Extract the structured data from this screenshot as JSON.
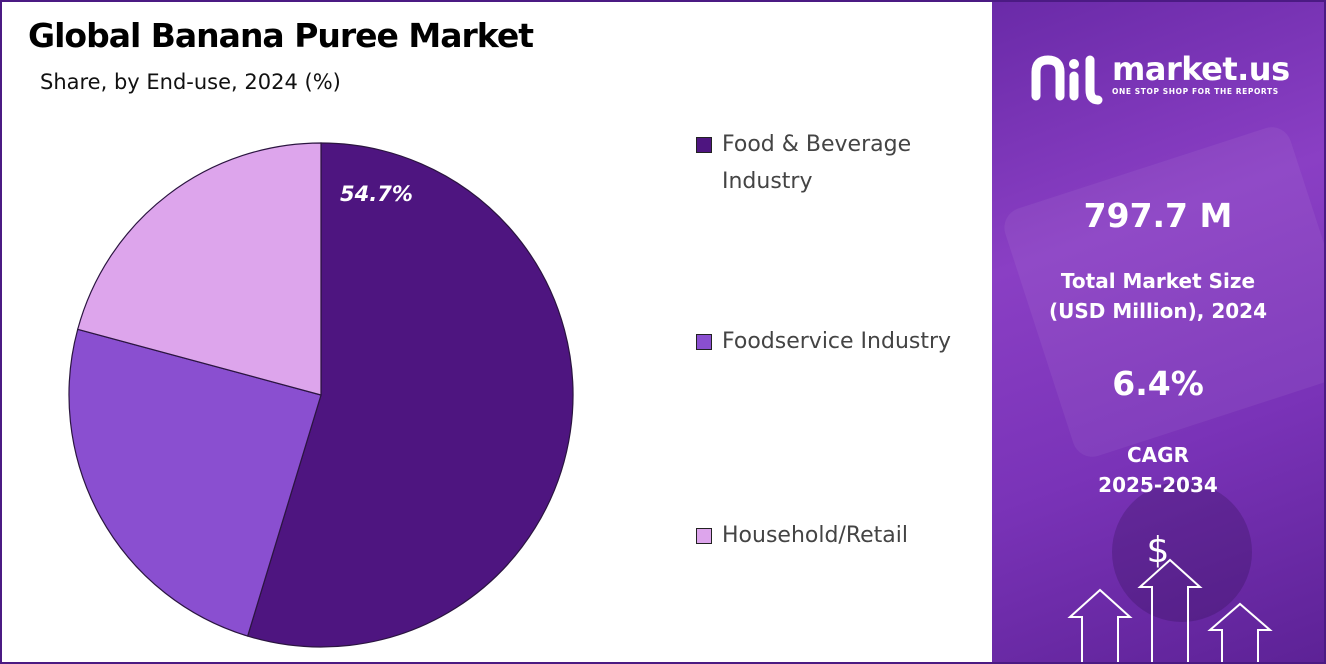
{
  "header": {
    "title": "Global Banana Puree Market",
    "subtitle": "Share, by End-use, 2024 (%)"
  },
  "chart_data": {
    "type": "pie",
    "title": "Global Banana Puree Market",
    "subtitle": "Share, by End-use, 2024 (%)",
    "categories": [
      "Food & Beverage Industry",
      "Foodservice Industry",
      "Household/Retail"
    ],
    "values": [
      54.7,
      24.5,
      20.8
    ],
    "data_labels": [
      "54.7%",
      "",
      ""
    ],
    "colors": [
      "#4e1580",
      "#8a4fd0",
      "#dda5ec"
    ],
    "legend_position": "right"
  },
  "legend": {
    "items": [
      {
        "label": "Food & Beverage Industry",
        "color": "#4e1580"
      },
      {
        "label": "Foodservice Industry",
        "color": "#8a4fd0"
      },
      {
        "label": "Household/Retail",
        "color": "#dda5ec"
      }
    ]
  },
  "sidebar": {
    "brand_name": "market.us",
    "brand_tagline": "ONE STOP SHOP FOR THE REPORTS",
    "market_size_value": "797.7 M",
    "market_size_label_line1": "Total Market Size",
    "market_size_label_line2": "(USD Million), 2024",
    "cagr_value": "6.4%",
    "cagr_label_line1": "CAGR",
    "cagr_label_line2": "2025-2034",
    "dollar_symbol": "$",
    "logo_icon": "market-us-logo-icon",
    "arrow_icon": "growth-arrows-icon"
  }
}
